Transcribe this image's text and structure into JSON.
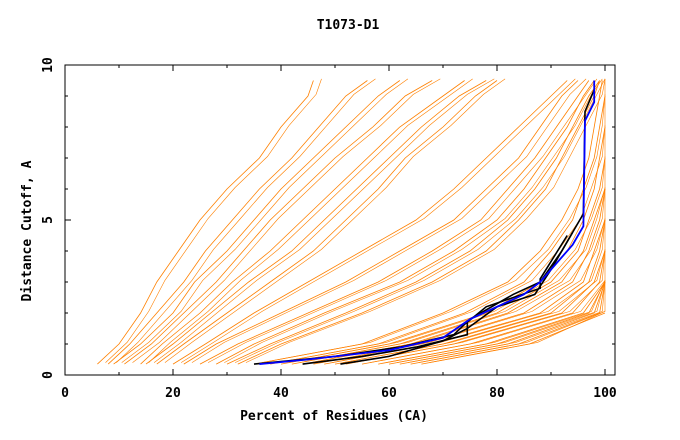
{
  "chart_data": {
    "type": "line",
    "title": "T1073-D1",
    "xlabel": "Percent of Residues (CA)",
    "ylabel": "Distance Cutoff, A",
    "xlim": [
      0,
      102
    ],
    "ylim": [
      0,
      10
    ],
    "xticks": [
      "0",
      "20",
      "40",
      "60",
      "80",
      "100"
    ],
    "xtick_values": [
      0,
      20,
      40,
      60,
      80,
      100
    ],
    "yticks": [
      "0",
      "5",
      "10"
    ],
    "ytick_values": [
      0,
      5,
      10
    ],
    "grid": false,
    "colors": {
      "others": "#ff8000",
      "highlight": "#0000ff",
      "group": "#000000"
    },
    "y_levels": [
      0.35,
      1,
      2,
      3,
      4,
      5,
      6,
      7,
      8,
      9,
      9.5
    ],
    "orange_series_x": [
      [
        6,
        10,
        14,
        17,
        21,
        25,
        30,
        36,
        40,
        45,
        46
      ],
      [
        8,
        12,
        17,
        22,
        26,
        31,
        36,
        42,
        47,
        52,
        56
      ],
      [
        9,
        14,
        20,
        24,
        30,
        35,
        40,
        46,
        52,
        58,
        62
      ],
      [
        11,
        16,
        22,
        28,
        33,
        38,
        44,
        50,
        57,
        63,
        68
      ],
      [
        14,
        18,
        25,
        31,
        38,
        44,
        50,
        56,
        62,
        70,
        74
      ],
      [
        15,
        20,
        27,
        34,
        42,
        48,
        54,
        60,
        66,
        73,
        78
      ],
      [
        17,
        22,
        30,
        38,
        46,
        52,
        58,
        63,
        70,
        76,
        80
      ],
      [
        20,
        26,
        35,
        45,
        55,
        65,
        72,
        78,
        84,
        90,
        93
      ],
      [
        22,
        28,
        40,
        52,
        62,
        72,
        78,
        84,
        88,
        92,
        95
      ],
      [
        25,
        32,
        45,
        58,
        68,
        77,
        82,
        87,
        91,
        95,
        97
      ],
      [
        28,
        35,
        48,
        62,
        72,
        80,
        85,
        89,
        93,
        96,
        98
      ],
      [
        30,
        38,
        52,
        65,
        75,
        82,
        87,
        91,
        94,
        97,
        99
      ],
      [
        32,
        40,
        55,
        68,
        78,
        84,
        89,
        92,
        95,
        98,
        99
      ],
      [
        35,
        55,
        70,
        82,
        88,
        92,
        95,
        97,
        98,
        99,
        99.5
      ],
      [
        38,
        58,
        74,
        85,
        90,
        94,
        96,
        98,
        99,
        100
      ],
      [
        40,
        60,
        78,
        88,
        93,
        96,
        98,
        99,
        100
      ],
      [
        42,
        62,
        80,
        90,
        95,
        97,
        99,
        100
      ],
      [
        44,
        64,
        82,
        92,
        96,
        98,
        100
      ],
      [
        46,
        66,
        85,
        94,
        97,
        99,
        100
      ],
      [
        48,
        68,
        88,
        96,
        98,
        100
      ],
      [
        50,
        70,
        90,
        97,
        99,
        100
      ],
      [
        52,
        72,
        92,
        98,
        100
      ],
      [
        55,
        75,
        94,
        99,
        100
      ],
      [
        58,
        78,
        96,
        100
      ],
      [
        60,
        80,
        97,
        100
      ],
      [
        62,
        82,
        98,
        100
      ],
      [
        64,
        84,
        99,
        100
      ],
      [
        66,
        86,
        100
      ]
    ],
    "black_series": [
      [
        [
          35,
          0.35
        ],
        [
          50,
          0.6
        ],
        [
          62,
          0.9
        ],
        [
          72,
          1.3
        ],
        [
          75,
          1.8
        ],
        [
          83,
          2.6
        ],
        [
          88,
          3.0
        ],
        [
          92,
          4.0
        ],
        [
          96,
          5.2
        ],
        [
          96.3,
          8.5
        ],
        [
          98,
          9.2
        ]
      ],
      [
        [
          44,
          0.35
        ],
        [
          55,
          0.6
        ],
        [
          65,
          0.9
        ],
        [
          74.5,
          1.3
        ],
        [
          74.5,
          1.7
        ],
        [
          78,
          2.2
        ],
        [
          88,
          2.8
        ],
        [
          88,
          3.1
        ],
        [
          93,
          4.5
        ]
      ],
      [
        [
          51,
          0.35
        ],
        [
          60,
          0.6
        ],
        [
          70,
          1.1
        ],
        [
          74.5,
          1.5
        ],
        [
          80,
          2.2
        ],
        [
          87,
          2.6
        ],
        [
          90,
          3.4
        ],
        [
          94,
          4.6
        ]
      ]
    ],
    "blue_series": [
      [
        36,
        0.35
      ],
      [
        45,
        0.5
      ],
      [
        60,
        0.8
      ],
      [
        70,
        1.2
      ],
      [
        75,
        1.8
      ],
      [
        85,
        2.6
      ],
      [
        88,
        3.0
      ],
      [
        94,
        4.2
      ],
      [
        96,
        4.8
      ],
      [
        96.3,
        8.2
      ],
      [
        98,
        8.8
      ],
      [
        98,
        9.5
      ]
    ]
  }
}
